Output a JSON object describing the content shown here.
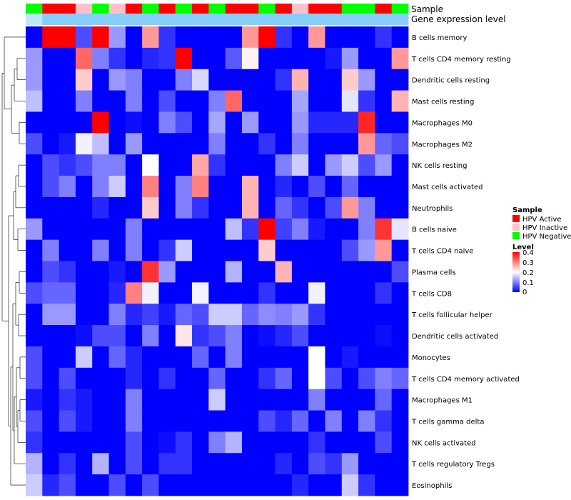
{
  "chart_data": {
    "type": "heatmap",
    "title": "",
    "annotation_tracks": [
      "Sample",
      "Gene expression level"
    ],
    "rows": [
      "B cells memory",
      "T cells CD4 memory resting",
      "Dendritic cells resting",
      "Mast cells resting",
      "Macrophages M0",
      "Macrophages M2",
      "NK cells resting",
      "Mast cells activated",
      "Neutrophils",
      "B cells naive",
      "T cells CD4 naive",
      "Plasma cells",
      "T cells CD8",
      "T cells follicular helper",
      "Dendritic cells activated",
      "Monocytes",
      "T cells CD4 memory activated",
      "Macrophages M1",
      "T cells gamma delta",
      "NK cells activated",
      "T cells regulatory  Tregs",
      "Eosinophils"
    ],
    "column_sample_groups": [
      "HPV Negative",
      "HPV Active",
      "HPV Active",
      "HPV Inactive",
      "HPV Negative",
      "HPV Inactive",
      "HPV Active",
      "HPV Negative",
      "HPV Active",
      "HPV Negative",
      "HPV Active",
      "HPV Negative",
      "HPV Active",
      "HPV Active",
      "HPV Negative",
      "HPV Active",
      "HPV Inactive",
      "HPV Active",
      "HPV Active",
      "HPV Negative",
      "HPV Negative",
      "HPV Active",
      "HPV Negative"
    ],
    "column_expression_levels": [
      0.2,
      0.15,
      0.15,
      0.15,
      0.15,
      0.15,
      0.15,
      0.15,
      0.15,
      0.15,
      0.15,
      0.15,
      0.15,
      0.15,
      0.15,
      0.15,
      0.15,
      0.15,
      0.15,
      0.15,
      0.15,
      0.15,
      0.15
    ],
    "values": [
      [
        0.0,
        0.4,
        0.4,
        0.06,
        0.4,
        0.12,
        0.0,
        0.28,
        0.04,
        0.0,
        0.0,
        0.0,
        0.0,
        0.28,
        0.4,
        0.04,
        0.0,
        0.28,
        0.0,
        0.0,
        0.0,
        0.04,
        0.0
      ],
      [
        0.12,
        0.0,
        0.0,
        0.32,
        0.1,
        0.04,
        0.0,
        0.03,
        0.04,
        0.4,
        0.0,
        0.0,
        0.07,
        0.21,
        0.0,
        0.0,
        0.0,
        0.0,
        0.02,
        0.12,
        0.0,
        0.0,
        0.28
      ],
      [
        0.12,
        0.0,
        0.0,
        0.24,
        0.0,
        0.12,
        0.1,
        0.0,
        0.0,
        0.1,
        0.17,
        0.0,
        0.0,
        0.0,
        0.0,
        0.04,
        0.26,
        0.0,
        0.0,
        0.24,
        0.12,
        0.0,
        0.0
      ],
      [
        0.15,
        0.0,
        0.0,
        0.1,
        0.0,
        0.0,
        0.1,
        0.0,
        0.06,
        0.0,
        0.0,
        0.1,
        0.32,
        0.0,
        0.0,
        0.0,
        0.13,
        0.0,
        0.0,
        0.18,
        0.04,
        0.0,
        0.26
      ],
      [
        0.0,
        0.0,
        0.0,
        0.0,
        0.4,
        0.0,
        0.01,
        0.0,
        0.1,
        0.06,
        0.0,
        0.13,
        0.0,
        0.12,
        0.0,
        0.0,
        0.12,
        0.03,
        0.03,
        0.03,
        0.37,
        0.0,
        0.0
      ],
      [
        0.06,
        0.0,
        0.02,
        0.19,
        0.15,
        0.0,
        0.12,
        0.0,
        0.0,
        0.0,
        0.0,
        0.1,
        0.0,
        0.0,
        0.04,
        0.0,
        0.1,
        0.0,
        0.0,
        0.0,
        0.28,
        0.08,
        0.06
      ],
      [
        0.0,
        0.06,
        0.04,
        0.06,
        0.1,
        0.1,
        0.0,
        0.2,
        0.0,
        0.0,
        0.27,
        0.04,
        0.0,
        0.0,
        0.0,
        0.1,
        0.16,
        0.0,
        0.12,
        0.16,
        0.06,
        0.12,
        0.0
      ],
      [
        0.0,
        0.06,
        0.1,
        0.0,
        0.1,
        0.16,
        0.0,
        0.3,
        0.0,
        0.1,
        0.3,
        0.0,
        0.0,
        0.26,
        0.0,
        0.03,
        0.0,
        0.06,
        0.0,
        0.08,
        0.0,
        0.0,
        0.0
      ],
      [
        0.0,
        0.0,
        0.0,
        0.0,
        0.03,
        0.0,
        0.0,
        0.24,
        0.0,
        0.1,
        0.04,
        0.0,
        0.0,
        0.26,
        0.0,
        0.08,
        0.04,
        0.0,
        0.06,
        0.28,
        0.1,
        0.0,
        0.0
      ],
      [
        0.12,
        0.0,
        0.0,
        0.0,
        0.0,
        0.0,
        0.1,
        0.0,
        0.0,
        0.0,
        0.0,
        0.0,
        0.15,
        0.04,
        0.4,
        0.05,
        0.1,
        0.02,
        0.0,
        0.0,
        0.1,
        0.36,
        0.18
      ],
      [
        0.0,
        0.1,
        0.0,
        0.0,
        0.1,
        0.0,
        0.1,
        0.0,
        0.04,
        0.16,
        0.0,
        0.0,
        0.0,
        0.0,
        0.24,
        0.0,
        0.0,
        0.0,
        0.0,
        0.06,
        0.12,
        0.28,
        0.0
      ],
      [
        0.0,
        0.06,
        0.04,
        0.0,
        0.0,
        0.02,
        0.0,
        0.36,
        0.12,
        0.0,
        0.0,
        0.0,
        0.14,
        0.0,
        0.0,
        0.26,
        0.0,
        0.0,
        0.0,
        0.0,
        0.0,
        0.0,
        0.06
      ],
      [
        0.06,
        0.08,
        0.08,
        0.0,
        0.0,
        0.03,
        0.3,
        0.19,
        0.0,
        0.0,
        0.19,
        0.0,
        0.0,
        0.0,
        0.04,
        0.0,
        0.0,
        0.19,
        0.0,
        0.0,
        0.0,
        0.04,
        0.0
      ],
      [
        0.0,
        0.12,
        0.12,
        0.0,
        0.0,
        0.1,
        0.03,
        0.05,
        0.02,
        0.08,
        0.06,
        0.16,
        0.16,
        0.08,
        0.11,
        0.1,
        0.12,
        0.04,
        0.0,
        0.0,
        0.0,
        0.0,
        0.0
      ],
      [
        0.0,
        0.0,
        0.0,
        0.01,
        0.06,
        0.06,
        0.0,
        0.1,
        0.0,
        0.22,
        0.04,
        0.06,
        0.1,
        0.0,
        0.01,
        0.03,
        0.06,
        0.0,
        0.0,
        0.0,
        0.0,
        0.01,
        0.0
      ],
      [
        0.06,
        0.0,
        0.0,
        0.16,
        0.0,
        0.08,
        0.03,
        0.0,
        0.0,
        0.0,
        0.08,
        0.0,
        0.1,
        0.0,
        0.0,
        0.0,
        0.0,
        0.2,
        0.0,
        0.02,
        0.0,
        0.0,
        0.0
      ],
      [
        0.06,
        0.0,
        0.06,
        0.0,
        0.0,
        0.0,
        0.03,
        0.0,
        0.04,
        0.0,
        0.0,
        0.08,
        0.0,
        0.0,
        0.04,
        0.08,
        0.0,
        0.2,
        0.06,
        0.0,
        0.06,
        0.1,
        0.08
      ],
      [
        0.02,
        0.0,
        0.04,
        0.02,
        0.0,
        0.0,
        0.1,
        0.0,
        0.0,
        0.0,
        0.0,
        0.16,
        0.0,
        0.0,
        0.0,
        0.0,
        0.0,
        0.1,
        0.0,
        0.0,
        0.0,
        0.08,
        0.0
      ],
      [
        0.06,
        0.0,
        0.06,
        0.02,
        0.0,
        0.0,
        0.1,
        0.0,
        0.0,
        0.0,
        0.0,
        0.0,
        0.0,
        0.0,
        0.06,
        0.03,
        0.08,
        0.0,
        0.1,
        0.0,
        0.1,
        0.04,
        0.0
      ],
      [
        0.04,
        0.0,
        0.0,
        0.0,
        0.0,
        0.0,
        0.06,
        0.0,
        0.01,
        0.04,
        0.0,
        0.1,
        0.14,
        0.0,
        0.0,
        0.0,
        0.0,
        0.04,
        0.0,
        0.0,
        0.0,
        0.06,
        0.0
      ],
      [
        0.14,
        0.0,
        0.04,
        0.0,
        0.14,
        0.0,
        0.06,
        0.0,
        0.04,
        0.04,
        0.0,
        0.0,
        0.0,
        0.0,
        0.0,
        0.03,
        0.0,
        0.06,
        0.04,
        0.12,
        0.0,
        0.0,
        0.0
      ],
      [
        0.16,
        0.03,
        0.06,
        0.0,
        0.0,
        0.06,
        0.0,
        0.06,
        0.0,
        0.0,
        0.0,
        0.0,
        0.0,
        0.0,
        0.0,
        0.0,
        0.03,
        0.0,
        0.0,
        0.16,
        0.04,
        0.0,
        0.0
      ]
    ],
    "color_scale": {
      "min": 0,
      "mid": 0.2,
      "max": 0.4,
      "low_color": "#0000ff",
      "mid_color": "#ffffff",
      "high_color": "#ff0000"
    },
    "dendrogram": "row"
  },
  "legend": {
    "sample": {
      "title": "Sample",
      "items": [
        {
          "label": "HPV Active",
          "color": "#ff0000"
        },
        {
          "label": "HPV Inactive",
          "color": "#ffc0cb"
        },
        {
          "label": "HPV Negative",
          "color": "#00ff00"
        }
      ]
    },
    "level": {
      "title": "Level",
      "ticks": [
        "0.4",
        "0.3",
        "0.2",
        "0.1",
        "0"
      ]
    }
  },
  "expression_track_color": "#87cefa"
}
